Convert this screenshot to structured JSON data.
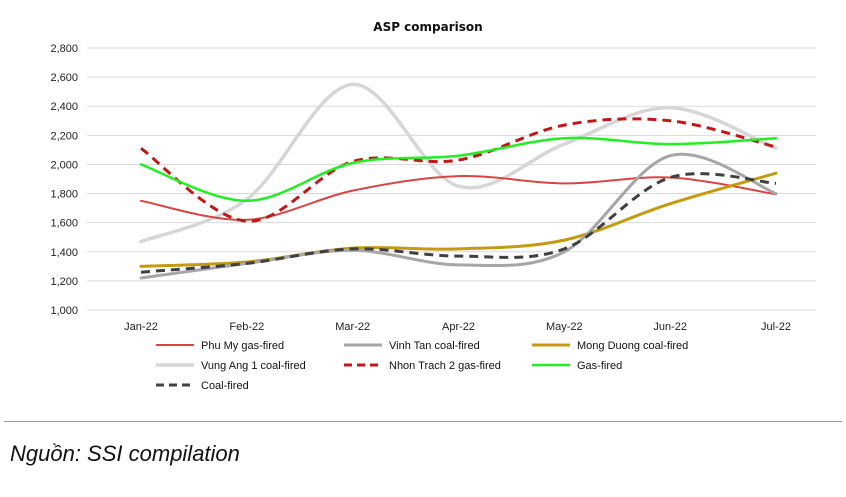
{
  "source_note": "Nguồn: SSI compilation",
  "chart_data": {
    "type": "line",
    "title": "ASP comparison",
    "xlabel": "",
    "ylabel": "",
    "categories": [
      "Jan-22",
      "Feb-22",
      "Mar-22",
      "Apr-22",
      "May-22",
      "Jun-22",
      "Jul-22"
    ],
    "ylim": [
      1000,
      2800
    ],
    "yticks": [
      1000,
      1200,
      1400,
      1600,
      1800,
      2000,
      2200,
      2400,
      2600,
      2800
    ],
    "ytick_labels": [
      "1,000",
      "1,200",
      "1,400",
      "1,600",
      "1,800",
      "2,000",
      "2,200",
      "2,400",
      "2,600",
      "2,800"
    ],
    "grid": "horizontal",
    "legend_position": "bottom",
    "series": [
      {
        "name": "Phu My gas-fired",
        "values": [
          1750,
          1620,
          1820,
          1920,
          1870,
          1910,
          1795
        ],
        "color": "#d94545",
        "dashed": false,
        "width": 2
      },
      {
        "name": "Vinh Tan coal-fired",
        "values": [
          1220,
          1320,
          1410,
          1310,
          1400,
          2060,
          1800
        ],
        "color": "#a6a6a6",
        "dashed": false,
        "width": 3
      },
      {
        "name": "Mong Duong coal-fired",
        "values": [
          1300,
          1330,
          1425,
          1420,
          1480,
          1730,
          1940
        ],
        "color": "#c49a10",
        "dashed": false,
        "width": 3
      },
      {
        "name": "Vung Ang 1 coal-fired",
        "values": [
          1470,
          1760,
          2550,
          1850,
          2140,
          2390,
          2110
        ],
        "color": "#d6d6d6",
        "dashed": false,
        "width": 3.5
      },
      {
        "name": "Nhon Trach 2 gas-fired",
        "values": [
          2110,
          1610,
          2020,
          2030,
          2270,
          2300,
          2120
        ],
        "color": "#c01818",
        "dashed": true,
        "width": 3
      },
      {
        "name": "Gas-fired",
        "values": [
          2000,
          1750,
          2010,
          2060,
          2180,
          2140,
          2180
        ],
        "color": "#22ee22",
        "dashed": false,
        "width": 2.5
      },
      {
        "name": "Coal-fired",
        "values": [
          1260,
          1320,
          1420,
          1370,
          1420,
          1910,
          1870
        ],
        "color": "#404040",
        "dashed": true,
        "width": 3
      }
    ]
  }
}
